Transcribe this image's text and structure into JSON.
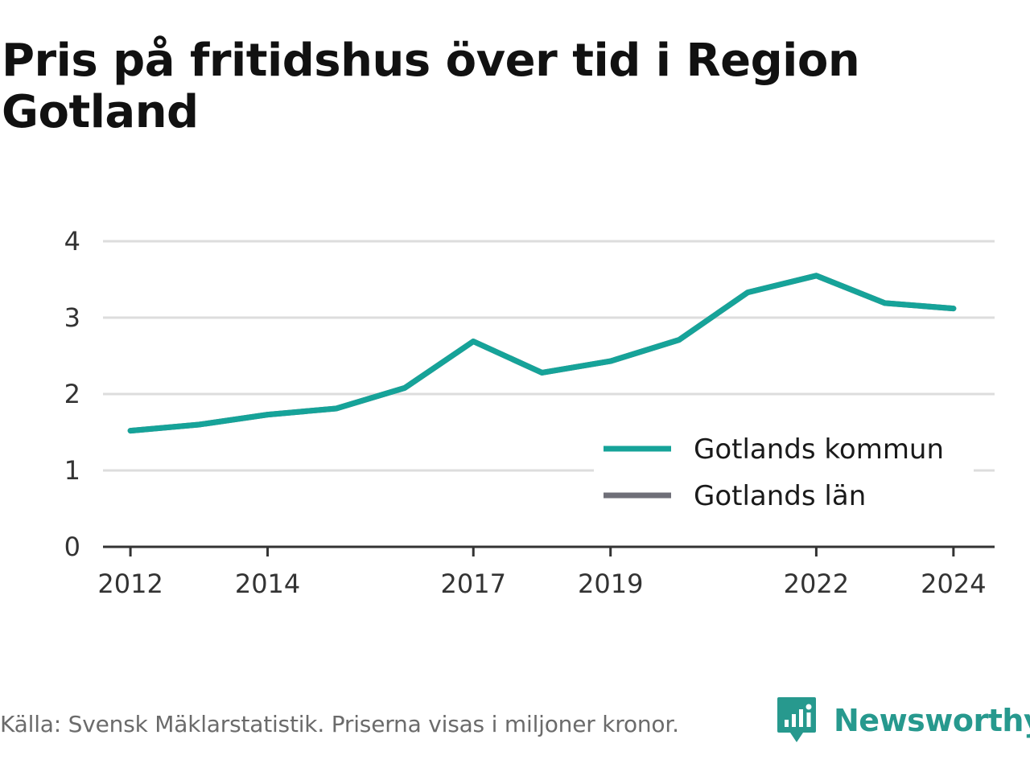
{
  "title": "Pris på fritidshus över tid i Region Gotland",
  "footer": {
    "source": "Källa: Svensk Mäklarstatistik. Priserna visas i miljoner kronor."
  },
  "brand": {
    "name": "Newsworthy",
    "icon": "newsworthy-logo-icon",
    "color": "#27998e"
  },
  "chart_data": {
    "type": "line",
    "title": "Pris på fritidshus över tid i Region Gotland",
    "xlabel": "",
    "ylabel": "",
    "x": [
      2012,
      2013,
      2014,
      2015,
      2016,
      2017,
      2018,
      2019,
      2020,
      2021,
      2022,
      2023,
      2024
    ],
    "x_ticks": [
      "2012",
      "2014",
      "2017",
      "2019",
      "2022",
      "2024"
    ],
    "y_ticks": [
      "0",
      "1",
      "2",
      "3",
      "4"
    ],
    "xlim": [
      2011.6,
      2024.6
    ],
    "ylim": [
      0,
      4
    ],
    "grid": true,
    "legend": "bottom-right",
    "series": [
      {
        "name": "Gotlands kommun",
        "color": "#16a399",
        "values": [
          1.52,
          1.6,
          1.73,
          1.81,
          2.08,
          2.69,
          2.28,
          2.43,
          2.71,
          3.33,
          3.55,
          3.19,
          3.12
        ]
      },
      {
        "name": "Gotlands län",
        "color": "#6f6f78",
        "values": [
          1.52,
          1.6,
          1.73,
          1.81,
          2.08,
          2.69,
          2.28,
          2.43,
          2.71,
          3.33,
          3.55,
          3.19,
          3.12
        ]
      }
    ]
  }
}
